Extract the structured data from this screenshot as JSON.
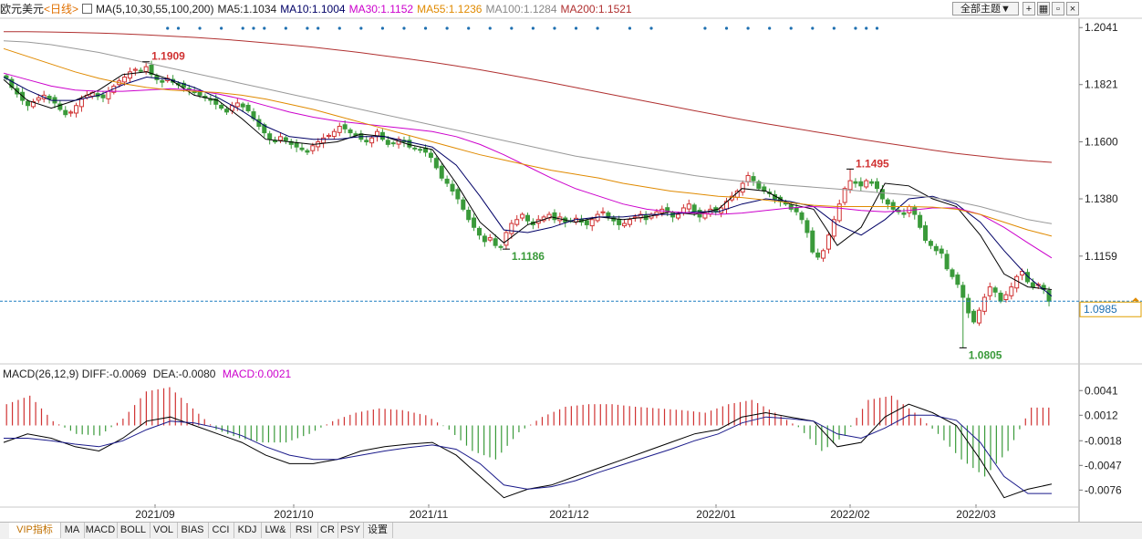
{
  "header": {
    "instrument": "欧元美元",
    "period": "<日线>",
    "ma_label": "MA(5,10,30,55,100,200)",
    "ma5": "MA5:1.1034",
    "ma10": "MA10:1.1004",
    "ma30": "MA30:1.1152",
    "ma55": "MA55:1.1236",
    "ma100": "MA100:1.1284",
    "ma200": "MA200:1.1521",
    "theme_button": "全部主题▼"
  },
  "macd_header": {
    "label": "MACD(26,12,9)",
    "diff": "DIFF:-0.0069",
    "dea": "DEA:-0.0080",
    "macd": "MACD:0.0021"
  },
  "colors": {
    "up": "#d03232",
    "down": "#3a9a3a",
    "ma5": "#000000",
    "ma10": "#000066",
    "ma30": "#cc00cc",
    "ma55": "#e08a00",
    "ma100": "#999999",
    "ma200": "#b03030",
    "macd_diff": "#000000",
    "macd_dea": "#1a1a8a",
    "current_price_line": "#1e7fc0"
  },
  "current_price": "1.0985",
  "tabs": [
    "VIP指标",
    "MA",
    "MACD",
    "BOLL",
    "VOL",
    "BIAS",
    "CCI",
    "KDJ",
    "LW&",
    "RSI",
    "CR",
    "PSY",
    "设置"
  ],
  "chart_data": [
    {
      "type": "candlestick",
      "title": "欧元美元 日线",
      "y_ticks": [
        "1.2041",
        "1.1821",
        "1.1600",
        "1.1380",
        "1.1159"
      ],
      "ylim": [
        1.075,
        1.207
      ],
      "x_ticks": [
        "2021/09",
        "2021/10",
        "2021/11",
        "2021/12",
        "2022/01",
        "2022/02",
        "2022/03"
      ],
      "annotations": [
        {
          "text": "1.1909",
          "kind": "high",
          "candle": 26
        },
        {
          "text": "1.1186",
          "kind": "low",
          "candle": 93
        },
        {
          "text": "1.1495",
          "kind": "high",
          "candle": 157
        },
        {
          "text": "1.0805",
          "kind": "low",
          "candle": 178
        }
      ],
      "closes": [
        1.1845,
        1.181,
        1.1785,
        1.176,
        1.174,
        1.1755,
        1.177,
        1.178,
        1.1765,
        1.175,
        1.1725,
        1.1705,
        1.1715,
        1.174,
        1.1765,
        1.178,
        1.179,
        1.1775,
        1.177,
        1.1795,
        1.1815,
        1.1835,
        1.185,
        1.187,
        1.188,
        1.1875,
        1.189,
        1.186,
        1.184,
        1.183,
        1.1845,
        1.183,
        1.182,
        1.181,
        1.18,
        1.179,
        1.178,
        1.177,
        1.176,
        1.1745,
        1.173,
        1.1715,
        1.174,
        1.175,
        1.1735,
        1.172,
        1.169,
        1.166,
        1.1635,
        1.161,
        1.16,
        1.162,
        1.1605,
        1.159,
        1.158,
        1.157,
        1.156,
        1.1585,
        1.16,
        1.1615,
        1.1625,
        1.164,
        1.166,
        1.165,
        1.1635,
        1.1625,
        1.161,
        1.16,
        1.1615,
        1.164,
        1.161,
        1.159,
        1.1595,
        1.161,
        1.16,
        1.158,
        1.1575,
        1.157,
        1.156,
        1.154,
        1.15,
        1.146,
        1.144,
        1.141,
        1.138,
        1.134,
        1.13,
        1.127,
        1.124,
        1.1215,
        1.123,
        1.12,
        1.1195,
        1.125,
        1.1285,
        1.13,
        1.132,
        1.1295,
        1.128,
        1.13,
        1.131,
        1.132,
        1.13,
        1.131,
        1.129,
        1.1295,
        1.1305,
        1.129,
        1.128,
        1.13,
        1.132,
        1.133,
        1.131,
        1.1295,
        1.128,
        1.1285,
        1.13,
        1.131,
        1.132,
        1.13,
        1.132,
        1.133,
        1.134,
        1.133,
        1.131,
        1.132,
        1.1345,
        1.136,
        1.133,
        1.131,
        1.1325,
        1.134,
        1.133,
        1.1345,
        1.137,
        1.139,
        1.141,
        1.144,
        1.147,
        1.145,
        1.142,
        1.141,
        1.14,
        1.138,
        1.137,
        1.136,
        1.134,
        1.133,
        1.13,
        1.125,
        1.1175,
        1.1155,
        1.118,
        1.124,
        1.13,
        1.136,
        1.142,
        1.145,
        1.144,
        1.143,
        1.145,
        1.144,
        1.142,
        1.138,
        1.136,
        1.134,
        1.133,
        1.132,
        1.135,
        1.132,
        1.127,
        1.122,
        1.12,
        1.118,
        1.117,
        1.111,
        1.108,
        1.105,
        1.1,
        1.094,
        1.0905,
        1.095,
        1.1,
        1.104,
        1.102,
        1.0985,
        1.101,
        1.104,
        1.108,
        1.11,
        1.106,
        1.104,
        1.105,
        1.103,
        1.0985
      ],
      "ma_series": [
        {
          "name": "MA5",
          "values": [
            1.184,
            1.176,
            1.173,
            1.176,
            1.18,
            1.186,
            1.187,
            1.184,
            1.178,
            1.176,
            1.169,
            1.161,
            1.16,
            1.159,
            1.16,
            1.163,
            1.162,
            1.159,
            1.157,
            1.144,
            1.129,
            1.121,
            1.128,
            1.131,
            1.129,
            1.131,
            1.13,
            1.131,
            1.133,
            1.132,
            1.134,
            1.142,
            1.141,
            1.136,
            1.134,
            1.12,
            1.127,
            1.144,
            1.143,
            1.138,
            1.135,
            1.124,
            1.109,
            1.104,
            1.103
          ]
        },
        {
          "name": "MA10",
          "values": [
            1.185,
            1.18,
            1.176,
            1.176,
            1.178,
            1.182,
            1.185,
            1.184,
            1.181,
            1.177,
            1.172,
            1.166,
            1.162,
            1.161,
            1.161,
            1.162,
            1.162,
            1.16,
            1.158,
            1.151,
            1.139,
            1.126,
            1.125,
            1.127,
            1.13,
            1.131,
            1.131,
            1.132,
            1.132,
            1.133,
            1.133,
            1.136,
            1.138,
            1.137,
            1.135,
            1.128,
            1.124,
            1.13,
            1.138,
            1.139,
            1.136,
            1.129,
            1.118,
            1.108,
            1.1004
          ]
        },
        {
          "name": "MA30",
          "values": [
            1.1865,
            1.184,
            1.1815,
            1.18,
            1.1795,
            1.1795,
            1.18,
            1.1805,
            1.18,
            1.1785,
            1.1765,
            1.174,
            1.1715,
            1.1695,
            1.168,
            1.167,
            1.166,
            1.165,
            1.164,
            1.162,
            1.159,
            1.155,
            1.1505,
            1.146,
            1.142,
            1.139,
            1.136,
            1.134,
            1.133,
            1.1325,
            1.132,
            1.1325,
            1.1335,
            1.1345,
            1.135,
            1.1345,
            1.1335,
            1.133,
            1.1335,
            1.1345,
            1.1345,
            1.132,
            1.127,
            1.121,
            1.1152
          ]
        },
        {
          "name": "MA55",
          "values": [
            1.196,
            1.193,
            1.19,
            1.187,
            1.1845,
            1.1825,
            1.181,
            1.18,
            1.1795,
            1.179,
            1.178,
            1.1765,
            1.1745,
            1.1725,
            1.17,
            1.1675,
            1.165,
            1.1625,
            1.16,
            1.1575,
            1.155,
            1.153,
            1.151,
            1.149,
            1.1475,
            1.146,
            1.144,
            1.1425,
            1.141,
            1.14,
            1.139,
            1.1385,
            1.1375,
            1.1365,
            1.1355,
            1.135,
            1.135,
            1.135,
            1.135,
            1.1348,
            1.134,
            1.132,
            1.129,
            1.126,
            1.1236
          ]
        },
        {
          "name": "MA100",
          "values": [
            1.199,
            1.1985,
            1.1975,
            1.196,
            1.1945,
            1.1925,
            1.1905,
            1.1885,
            1.1865,
            1.1845,
            1.1825,
            1.1805,
            1.1785,
            1.1765,
            1.1745,
            1.1725,
            1.1705,
            1.1685,
            1.1665,
            1.1645,
            1.1625,
            1.1605,
            1.1585,
            1.1565,
            1.1545,
            1.153,
            1.1515,
            1.15,
            1.1485,
            1.147,
            1.1458,
            1.1448,
            1.144,
            1.1432,
            1.1425,
            1.1418,
            1.141,
            1.1402,
            1.1395,
            1.1385,
            1.137,
            1.135,
            1.1325,
            1.13,
            1.1284
          ]
        },
        {
          "name": "MA200",
          "values": [
            1.2025,
            1.2025,
            1.2024,
            1.2022,
            1.202,
            1.2017,
            1.2013,
            1.2008,
            1.2003,
            1.1997,
            1.199,
            1.1982,
            1.1974,
            1.1965,
            1.1955,
            1.1944,
            1.1932,
            1.192,
            1.1907,
            1.1893,
            1.1878,
            1.1862,
            1.1845,
            1.1828,
            1.181,
            1.1792,
            1.1774,
            1.1756,
            1.1738,
            1.172,
            1.1703,
            1.1686,
            1.167,
            1.1655,
            1.164,
            1.1625,
            1.161,
            1.1596,
            1.1582,
            1.1568,
            1.1555,
            1.1545,
            1.1535,
            1.1527,
            1.1521
          ]
        }
      ]
    },
    {
      "type": "bar+line",
      "title": "MACD(26,12,9)",
      "y_ticks": [
        "0.0041",
        "0.0012",
        "-0.0018",
        "-0.0047",
        "-0.0076"
      ],
      "ylim": [
        -0.0096,
        0.0052
      ],
      "x_ticks": [
        "2021/09",
        "2021/10",
        "2021/11",
        "2021/12",
        "2022/01",
        "2022/02",
        "2022/03"
      ],
      "series": [
        {
          "name": "DIFF",
          "values": [
            -0.002,
            -0.001,
            -0.0015,
            -0.0025,
            -0.003,
            -0.0015,
            0.0005,
            0.001,
            0.0,
            -0.001,
            -0.002,
            -0.0035,
            -0.0045,
            -0.0045,
            -0.004,
            -0.003,
            -0.0025,
            -0.0022,
            -0.002,
            -0.0035,
            -0.006,
            -0.0085,
            -0.0075,
            -0.007,
            -0.006,
            -0.005,
            -0.004,
            -0.003,
            -0.002,
            -0.001,
            -0.0005,
            0.001,
            0.0015,
            0.001,
            0.0005,
            -0.0025,
            -0.002,
            0.001,
            0.0025,
            0.0015,
            0.0,
            -0.004,
            -0.0085,
            -0.0075,
            -0.0069
          ]
        },
        {
          "name": "DEA",
          "values": [
            -0.0015,
            -0.0015,
            -0.0018,
            -0.0022,
            -0.0025,
            -0.0018,
            -0.0005,
            0.0005,
            0.0003,
            -0.0003,
            -0.0012,
            -0.0025,
            -0.0035,
            -0.004,
            -0.004,
            -0.0035,
            -0.003,
            -0.0026,
            -0.0023,
            -0.0028,
            -0.0045,
            -0.007,
            -0.0075,
            -0.0072,
            -0.0065,
            -0.0055,
            -0.0046,
            -0.0037,
            -0.0028,
            -0.0018,
            -0.001,
            0.0003,
            0.001,
            0.0008,
            0.0005,
            -0.001,
            -0.0015,
            -0.0003,
            0.0012,
            0.0012,
            0.0006,
            -0.002,
            -0.006,
            -0.008,
            -0.008
          ]
        },
        {
          "name": "MACD",
          "values": [
            0.0025,
            0.0035,
            0.0005,
            -0.001,
            -0.0012,
            0.0008,
            0.004,
            0.0045,
            0.002,
            -0.0005,
            -0.0015,
            -0.002,
            -0.002,
            -0.001,
            0.0005,
            0.0015,
            0.002,
            0.0018,
            0.0012,
            -0.0005,
            -0.003,
            -0.004,
            -0.0008,
            0.001,
            0.0022,
            0.0025,
            0.0025,
            0.0022,
            0.002,
            0.0018,
            0.0015,
            0.0025,
            0.003,
            0.0015,
            -0.0002,
            -0.003,
            -0.0012,
            0.003,
            0.0035,
            0.0015,
            -0.001,
            -0.004,
            -0.006,
            -0.003,
            0.0021
          ]
        }
      ]
    }
  ]
}
